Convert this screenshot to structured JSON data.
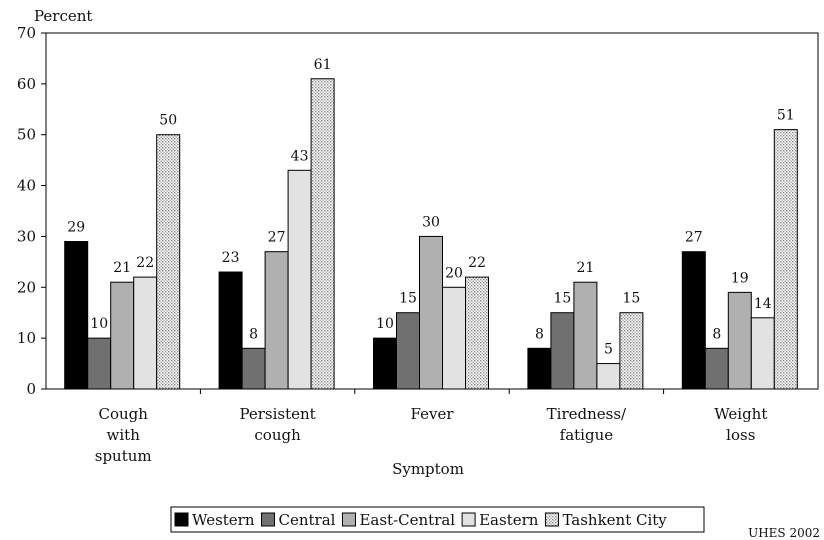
{
  "chart_data": {
    "type": "bar",
    "ylabel": "Percent",
    "xlabel": "Symptom",
    "ylim": [
      0,
      70
    ],
    "yticks": [
      0,
      10,
      20,
      30,
      40,
      50,
      60,
      70
    ],
    "grid": false,
    "legend_position": "bottom",
    "categories": [
      [
        "Cough",
        "with",
        "sputum"
      ],
      [
        "Persistent",
        "cough"
      ],
      [
        "Fever"
      ],
      [
        "Tiredness/",
        "fatigue"
      ],
      [
        "Weight",
        "loss"
      ]
    ],
    "series": [
      {
        "name": "Western",
        "values": [
          29,
          23,
          10,
          8,
          27
        ],
        "fill": "#000000"
      },
      {
        "name": "Central",
        "values": [
          10,
          8,
          15,
          15,
          8
        ],
        "fill": "#707070"
      },
      {
        "name": "East-Central",
        "values": [
          21,
          27,
          30,
          21,
          19
        ],
        "fill": "#b0b0b0"
      },
      {
        "name": "Eastern",
        "values": [
          22,
          43,
          20,
          5,
          14
        ],
        "fill": "#e2e2e2"
      },
      {
        "name": "Tashkent City",
        "values": [
          50,
          61,
          22,
          15,
          51
        ],
        "fill": "pattern"
      }
    ]
  },
  "source": "UHES 2002"
}
